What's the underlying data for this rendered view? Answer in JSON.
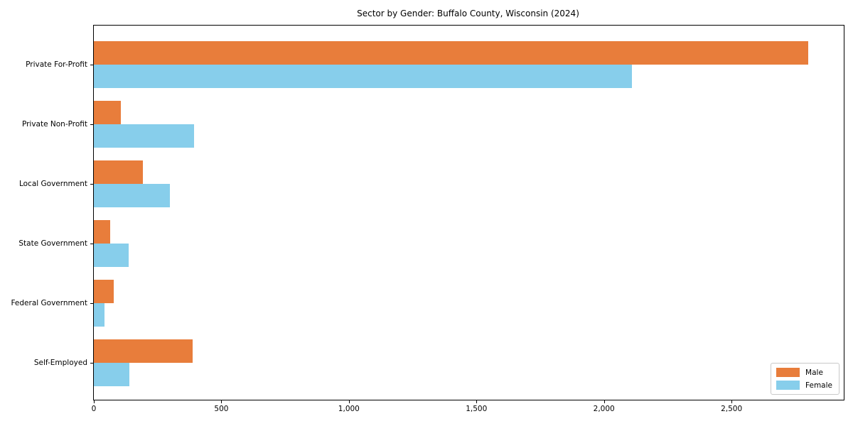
{
  "figure": {
    "background_color": "#ffffff",
    "frame_color": "#000000"
  },
  "chart_data": {
    "type": "bar",
    "orientation": "horizontal",
    "title": "Sector by Gender: Buffalo County, Wisconsin (2024)",
    "categories": [
      "Private For-Profit",
      "Private Non-Profit",
      "Local Government",
      "State Government",
      "Federal Government",
      "Self-Employed"
    ],
    "series": [
      {
        "name": "Male",
        "color": "#e87d3b",
        "values": [
          2800,
          107,
          193,
          63,
          79,
          386
        ]
      },
      {
        "name": "Female",
        "color": "#87ceeb",
        "values": [
          2110,
          393,
          297,
          136,
          43,
          139
        ]
      }
    ],
    "xlabel": "",
    "ylabel": "",
    "xlim": [
      0,
      2940
    ],
    "xticks": [
      0,
      500,
      1000,
      1500,
      2000,
      2500
    ],
    "xtick_labels": [
      "0",
      "500",
      "1,000",
      "1,500",
      "2,000",
      "2,500"
    ],
    "grid": false,
    "legend": {
      "position": "lower right",
      "entries": [
        "Male",
        "Female"
      ]
    }
  }
}
